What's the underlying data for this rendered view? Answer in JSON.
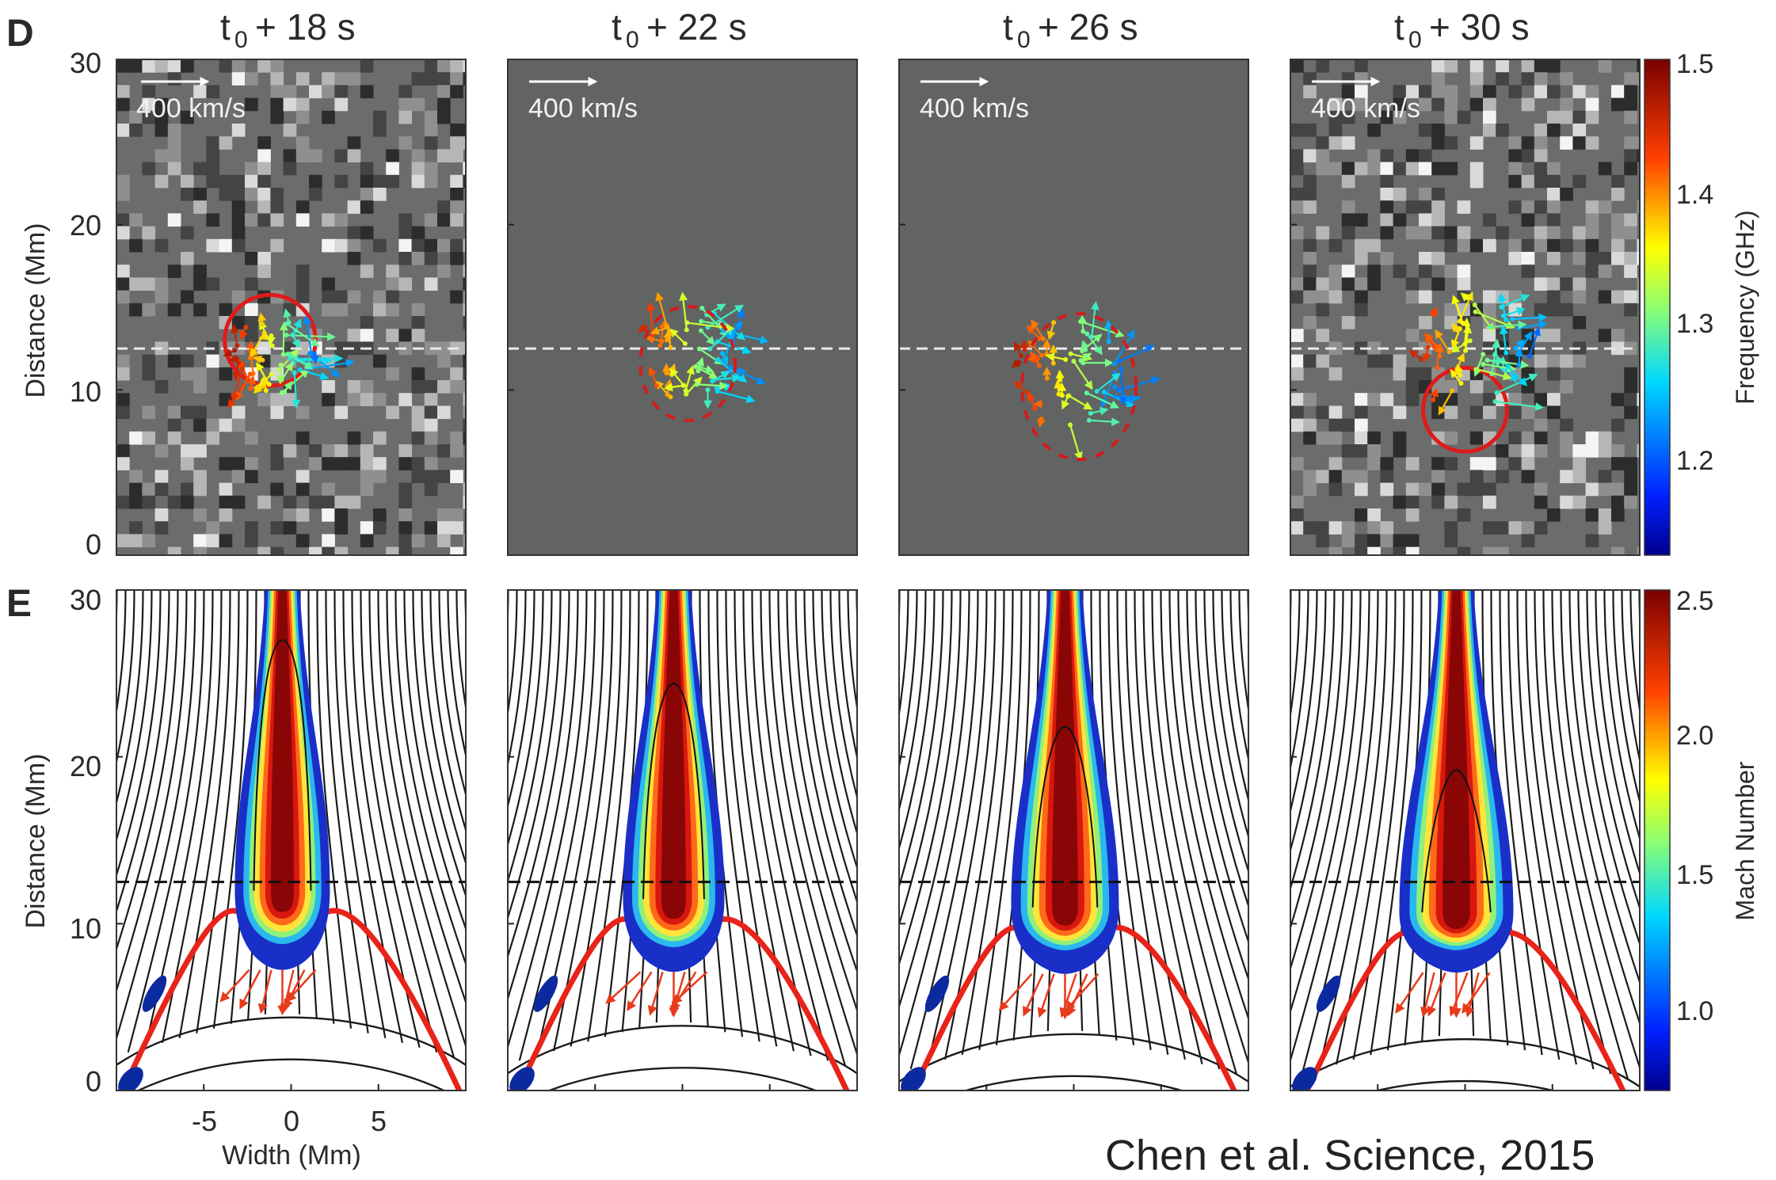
{
  "panel_labels": [
    "D",
    "E"
  ],
  "time_labels": [
    "t",
    "0",
    "+ 18 s",
    "+ 22 s",
    "+ 26 s",
    "+ 30 s"
  ],
  "time_prefix": "t",
  "time_subscript": "0",
  "time_suffixes": [
    "+ 18 s",
    "+ 22 s",
    "+ 26 s",
    "+ 30 s"
  ],
  "velocity_scale_label": "400 km/s",
  "credit": "Chen et al. Science, 2015",
  "chart_data": [
    {
      "type": "scatter",
      "panel": "D",
      "ylabel": "Distance (Mm)",
      "yticks": [
        "0",
        "10",
        "20",
        "30"
      ],
      "ylim": [
        0,
        30
      ],
      "colorbar": {
        "label": "Frequency (GHz)",
        "ticks": [
          "1.2",
          "1.3",
          "1.4",
          "1.5"
        ],
        "range": [
          1.13,
          1.52
        ]
      },
      "dashed_line_y": 12.5,
      "frames": [
        {
          "time": "t0 + 18 s",
          "circle": {
            "x": -1.2,
            "y": 13.0,
            "r": 2.6
          }
        },
        {
          "time": "t0 + 22 s"
        },
        {
          "time": "t0 + 26 s"
        },
        {
          "time": "t0 + 30 s",
          "circle": {
            "x": 0,
            "y": 8.8,
            "r": 2.4
          }
        }
      ]
    },
    {
      "type": "heatmap",
      "panel": "E",
      "xlabel": "Width (Mm)",
      "ylabel": "Distance (Mm)",
      "xticks": [
        "-5",
        "0",
        "5"
      ],
      "yticks": [
        "0",
        "10",
        "20",
        "30"
      ],
      "xlim": [
        -10,
        10
      ],
      "ylim": [
        0,
        30
      ],
      "colorbar": {
        "label": "Mach Number",
        "ticks": [
          "1.0",
          "1.5",
          "2.0",
          "2.5"
        ],
        "range": [
          0.7,
          2.55
        ]
      },
      "dashed_line_y": 12.5,
      "frames": [
        {
          "time": "t0 + 18 s",
          "shock_top_y": 11.5
        },
        {
          "time": "t0 + 22 s",
          "shock_top_y": 11.0
        },
        {
          "time": "t0 + 26 s",
          "shock_top_y": 10.5
        },
        {
          "time": "t0 + 30 s",
          "shock_top_y": 10.2
        }
      ]
    }
  ]
}
